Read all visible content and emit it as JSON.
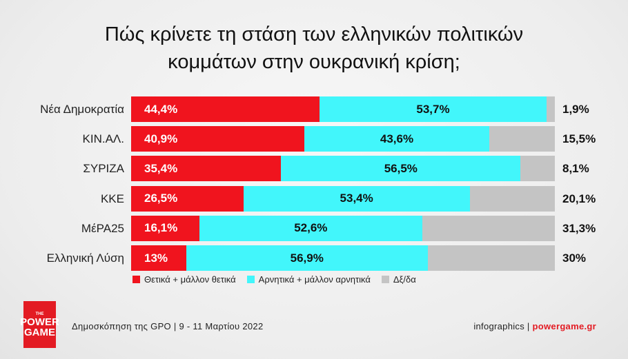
{
  "title_line1": "Πώς κρίνετε τη στάση των ελληνικών πολιτικών",
  "title_line2": "κομμάτων στην ουκρανική κρίση;",
  "chart_data": {
    "type": "bar",
    "orientation": "horizontal",
    "stacked": true,
    "categories": [
      "Νέα Δημοκρατία",
      "ΚΙΝ.ΑΛ.",
      "ΣΥΡΙΖΑ",
      "ΚΚΕ",
      "ΜέΡΑ25",
      "Ελληνική Λύση"
    ],
    "series": [
      {
        "name": "Θετικά + μάλλον θετικά",
        "color": "#f0141e",
        "values": [
          44.4,
          40.9,
          35.4,
          26.5,
          16.1,
          13
        ],
        "labels": [
          "44,4%",
          "40,9%",
          "35,4%",
          "26,5%",
          "16,1%",
          "13%"
        ]
      },
      {
        "name": "Αρνητικά + μάλλον αρνητικά",
        "color": "#42f6fb",
        "values": [
          53.7,
          43.6,
          56.5,
          53.4,
          52.6,
          56.9
        ],
        "labels": [
          "53,7%",
          "43,6%",
          "56,5%",
          "53,4%",
          "52,6%",
          "56,9%"
        ]
      },
      {
        "name": "Δξ/δα",
        "color": "#c4c4c4",
        "values": [
          1.9,
          15.5,
          8.1,
          20.1,
          31.3,
          30
        ],
        "labels": [
          "1,9%",
          "15,5%",
          "8,1%",
          "20,1%",
          "31,3%",
          "30%"
        ]
      }
    ],
    "xlim": [
      0,
      100
    ],
    "legend_position": "bottom"
  },
  "footer": {
    "source": "Δημοσκόπηση της GPO | 9 - 11 Μαρτίου 2022",
    "credit_prefix": "infographics | ",
    "credit_brand": "powergame.gr"
  },
  "logo": {
    "the": "THE",
    "line1": "POWER",
    "line2": "GAME"
  }
}
